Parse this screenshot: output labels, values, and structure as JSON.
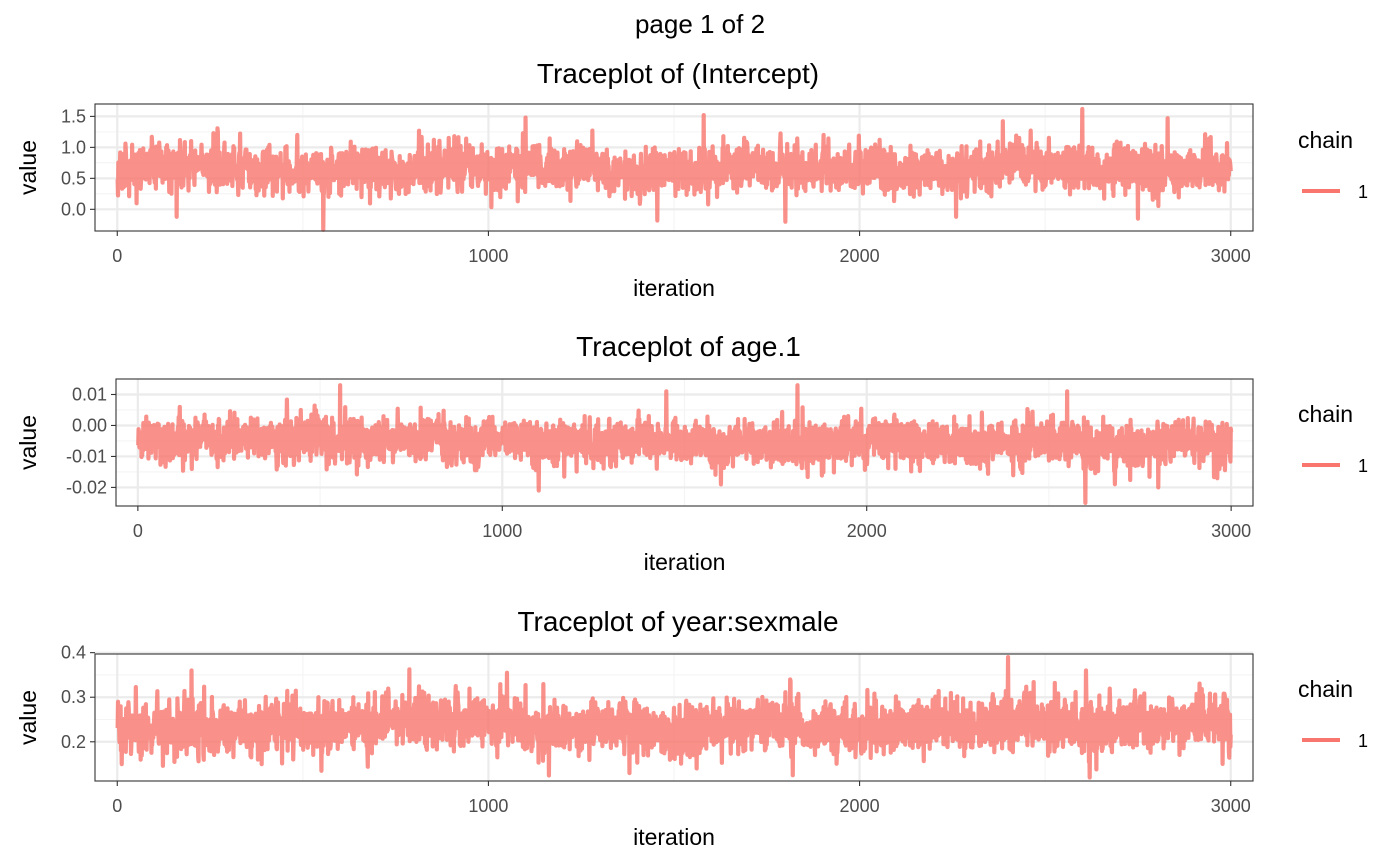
{
  "page": {
    "label": "page 1 of 2"
  },
  "colors": {
    "chain": "#F8766D",
    "panel_border": "#333333",
    "grid_major": "#EBEBEB",
    "grid_minor": "#F4F4F4"
  },
  "chart_data": [
    {
      "type": "line",
      "title": "Traceplot of  (Intercept)",
      "xlabel": "iteration",
      "ylabel": "value",
      "xlim": [
        -60,
        3060
      ],
      "ylim": [
        -0.35,
        1.7
      ],
      "xticks": [
        0,
        1000,
        2000,
        3000
      ],
      "yticks": [
        0.0,
        0.5,
        1.0,
        1.5
      ],
      "ytick_labels": [
        "0.0",
        "0.5",
        "1.0",
        "1.5"
      ],
      "legend": {
        "title": "chain",
        "entries": [
          "1"
        ],
        "position": "right"
      },
      "series": [
        {
          "name": "1",
          "n_iter": 3000,
          "mean": 0.65,
          "spread": 0.22,
          "seed": 11,
          "extremes": [
            [
              555,
              -0.33
            ],
            [
              160,
              -0.12
            ],
            [
              1455,
              -0.18
            ],
            [
              1800,
              -0.2
            ],
            [
              2260,
              -0.12
            ],
            [
              2750,
              -0.15
            ],
            [
              1100,
              1.48
            ],
            [
              1580,
              1.52
            ],
            [
              2600,
              1.62
            ],
            [
              2830,
              1.47
            ]
          ]
        }
      ]
    },
    {
      "type": "line",
      "title": "Traceplot of  age.1",
      "xlabel": "iteration",
      "ylabel": "value",
      "xlim": [
        -60,
        3060
      ],
      "ylim": [
        -0.026,
        0.015
      ],
      "xticks": [
        0,
        1000,
        2000,
        3000
      ],
      "yticks": [
        -0.02,
        -0.01,
        0.0,
        0.01
      ],
      "ytick_labels": [
        "-0.02",
        "-0.01",
        "0.00",
        "0.01"
      ],
      "legend": {
        "title": "chain",
        "entries": [
          "1"
        ],
        "position": "right"
      },
      "series": [
        {
          "name": "1",
          "n_iter": 3000,
          "mean": -0.0055,
          "spread": 0.0042,
          "seed": 23,
          "extremes": [
            [
              2600,
              -0.025
            ],
            [
              1100,
              -0.021
            ],
            [
              2800,
              -0.02
            ],
            [
              1600,
              -0.019
            ],
            [
              555,
              0.013
            ],
            [
              1810,
              0.013
            ],
            [
              1450,
              0.011
            ],
            [
              2550,
              0.011
            ]
          ]
        }
      ]
    },
    {
      "type": "line",
      "title": "Traceplot of  year:sexmale",
      "xlabel": "iteration",
      "ylabel": "value",
      "xlim": [
        -60,
        3060
      ],
      "ylim": [
        0.112,
        0.397
      ],
      "xticks": [
        0,
        1000,
        2000,
        3000
      ],
      "yticks": [
        0.2,
        0.3,
        0.4
      ],
      "ytick_labels": [
        "0.2",
        "0.3",
        "0.4"
      ],
      "legend": {
        "title": "chain",
        "entries": [
          "1"
        ],
        "position": "right"
      },
      "series": [
        {
          "name": "1",
          "n_iter": 3000,
          "mean": 0.235,
          "spread": 0.036,
          "seed": 37,
          "extremes": [
            [
              2400,
              0.39
            ],
            [
              200,
              0.36
            ],
            [
              1050,
              0.355
            ],
            [
              2610,
              0.36
            ],
            [
              2620,
              0.12
            ],
            [
              1820,
              0.125
            ],
            [
              1380,
              0.13
            ],
            [
              550,
              0.135
            ]
          ]
        }
      ]
    }
  ]
}
